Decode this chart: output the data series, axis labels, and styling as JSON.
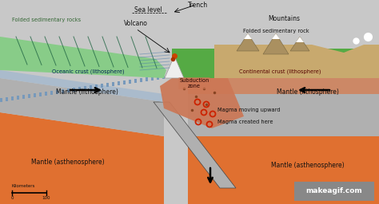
{
  "bg_color": "#c8c8c8",
  "colors": {
    "ocean_surface": "#88cc88",
    "continent_surface": "#55aa44",
    "mountains_surface": "#c8a96e",
    "oceanic_crust_stripe1": "#7799bb",
    "oceanic_crust_stripe2": "#aabbcc",
    "continental_crust": "#cc8866",
    "mantle_litho": "#b0b0b0",
    "mantle_astheno": "#e07030",
    "subduction_zone": "#cc7755",
    "magma": "#cc2200",
    "water_lines": "#4477aa",
    "border_dark": "#444444",
    "label_color": "#111111",
    "green_dark": "#336633",
    "makeagif_bg": "#888888",
    "makeagif_text": "#ffffff",
    "snow": "#ffffff",
    "volcano_white": "#eeeeee"
  },
  "labels": {
    "trench": "Trench",
    "sea_level": "Sea level",
    "volcano": "Volcano",
    "folded_rocks_left": "Folded sedimentary rocks",
    "folded_rocks_right": "Folded sedimentary rock",
    "mountains": "Mountains",
    "oceanic_crust": "Oceanic crust (lithosphere)",
    "continental_crust": "Continental crust (lithosphere)",
    "mantle_litho_left": "Mantle (lithosphere)",
    "mantle_litho_right": "Mantle (lithosphere)",
    "subduction_zone": "Subduction\nzone",
    "magma_up": "Magma moving upward",
    "magma_created": "Magma created here",
    "mantle_asthen_left": "Mantle (asthenosphere)",
    "mantle_asthen_right": "Mantle (asthenosphere)",
    "km_label": "Kilometers",
    "scale_0": "0",
    "scale_100": "100",
    "makeagif": "makeagif.com"
  }
}
